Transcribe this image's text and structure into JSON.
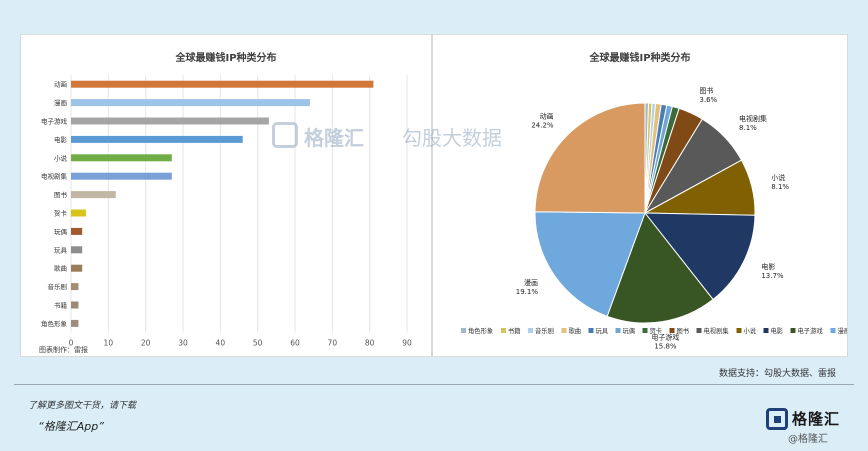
{
  "chart_data": [
    {
      "type": "bar",
      "orientation": "horizontal",
      "title": "全球最赚钱IP种类分布",
      "categories": [
        "动画",
        "漫画",
        "电子游戏",
        "电影",
        "小说",
        "电视剧集",
        "图书",
        "贺卡",
        "玩偶",
        "玩具",
        "歌曲",
        "音乐剧",
        "书籍",
        "角色形象"
      ],
      "values": [
        81,
        64,
        53,
        46,
        27,
        27,
        12,
        4,
        3,
        3,
        3,
        2,
        2,
        2
      ],
      "colors": [
        "#d2773a",
        "#9dc3e6",
        "#a5a5a5",
        "#5b9bd5",
        "#70ad47",
        "#7aa0d8",
        "#c2b6a4",
        "#d6c41b",
        "#a05a2c",
        "#8e8e8e",
        "#9a7e5c",
        "#a68c72",
        "#9c8a77",
        "#9e8e82"
      ],
      "xlim": [
        0,
        90
      ],
      "xticks": [
        0,
        10,
        20,
        30,
        40,
        50,
        60,
        70,
        80,
        90
      ],
      "grid": true,
      "footnote": "图表制作：雷报"
    },
    {
      "type": "pie",
      "title": "全球最赚钱IP种类分布",
      "labels": [
        "角色形象",
        "书籍",
        "音乐剧",
        "歌曲",
        "玩具",
        "玩偶",
        "贺卡",
        "图书",
        "电视剧集",
        "小说",
        "电影",
        "电子游戏",
        "漫画",
        "动画"
      ],
      "values": [
        0.5,
        0.5,
        0.5,
        0.8,
        0.8,
        0.8,
        1.0,
        3.6,
        8.1,
        8.1,
        13.7,
        15.8,
        19.1,
        24.2
      ],
      "slice_labels": [
        {
          "name": "图书",
          "pct": "3.6%"
        },
        {
          "name": "电视剧集",
          "pct": "8.1%"
        },
        {
          "name": "小说",
          "pct": "8.1%"
        },
        {
          "name": "电影",
          "pct": "13.7%"
        },
        {
          "name": "电子游戏",
          "pct": "15.8%"
        },
        {
          "name": "漫画",
          "pct": "19.1%"
        },
        {
          "name": "动画",
          "pct": "24.2%"
        }
      ],
      "colors": [
        "#a3b8cc",
        "#d8c35a",
        "#b0cfe8",
        "#e3c07a",
        "#4a7db8",
        "#6fa6d4",
        "#3a6b3a",
        "#7f4a16",
        "#595959",
        "#806000",
        "#1f3864",
        "#375623",
        "#6fa8dc",
        "#d99a61"
      ],
      "legend": "bottom"
    }
  ],
  "watermark": {
    "brand": "格隆汇",
    "slogan": "勾股大数据"
  },
  "source": "数据支持：勾股大数据、雷报",
  "footer": {
    "download_text": "了解更多图文干货，请下载",
    "app_name": "“格隆汇App”",
    "logo_text": "格隆汇",
    "logo_sub": "@格隆汇"
  }
}
